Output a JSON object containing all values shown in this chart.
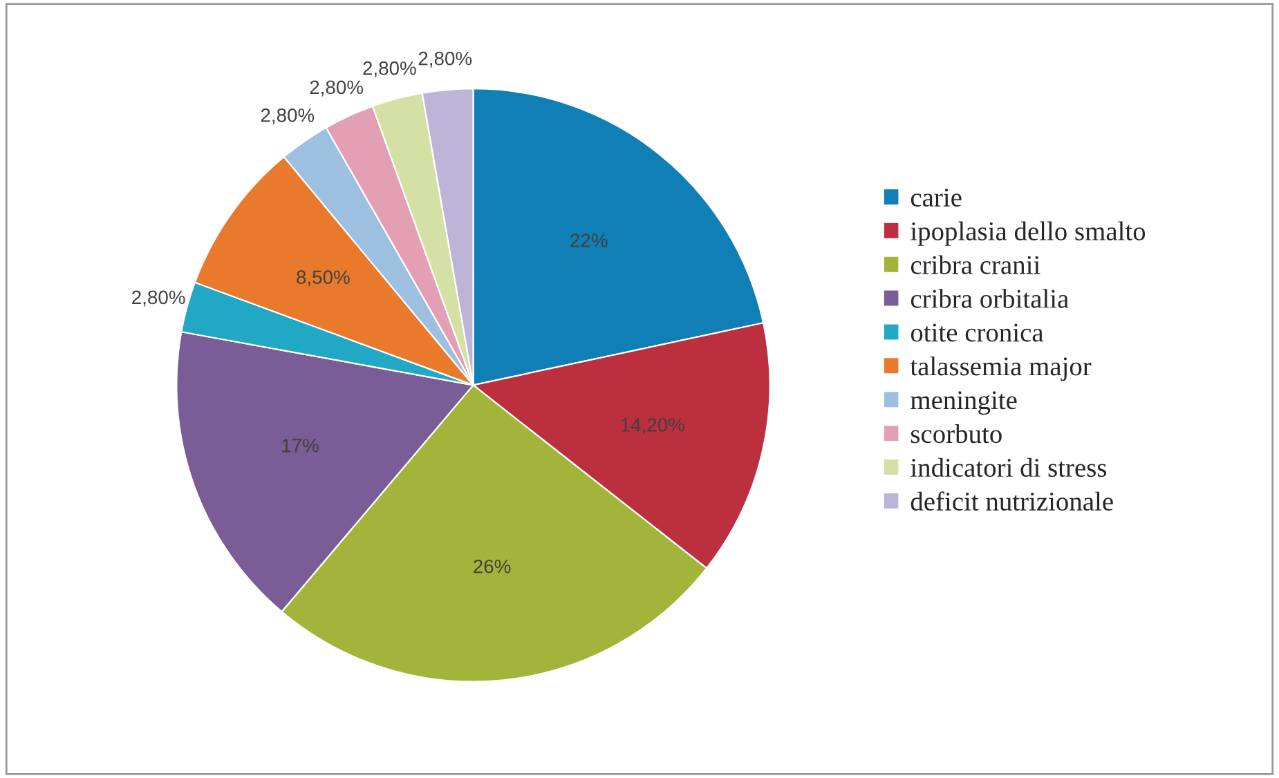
{
  "chart_data": {
    "type": "pie",
    "categories": [
      "carie",
      "ipoplasia dello smalto",
      "cribra cranii",
      "cribra orbitalia",
      "otite cronica",
      "talassemia major",
      "meningite",
      "scorbuto",
      "indicatori di stress",
      "deficit nutrizionale"
    ],
    "values": [
      22,
      14.2,
      26,
      17,
      2.8,
      8.5,
      2.8,
      2.8,
      2.8,
      2.8
    ],
    "value_labels": [
      "22%",
      "14,20%",
      "26%",
      "17%",
      "2,80%",
      "8,50%",
      "2,80%",
      "2,80%",
      "2,80%",
      "2,80%"
    ],
    "colors": [
      "#0f7fb5",
      "#bc2f3f",
      "#a3b43a",
      "#7a5c96",
      "#21a8c4",
      "#e97a2c",
      "#9dbfe0",
      "#e3a0b5",
      "#d5e0a4",
      "#bdb5d8"
    ],
    "legend": "right"
  }
}
